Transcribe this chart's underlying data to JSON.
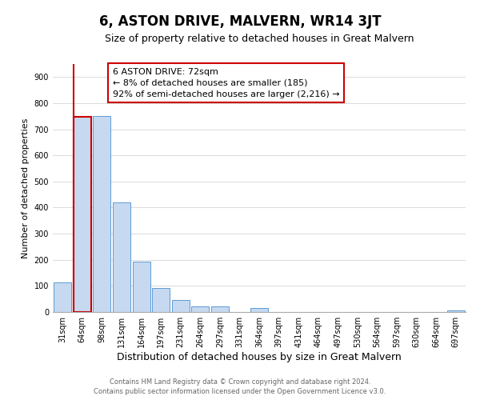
{
  "title": "6, ASTON DRIVE, MALVERN, WR14 3JT",
  "subtitle": "Size of property relative to detached houses in Great Malvern",
  "xlabel": "Distribution of detached houses by size in Great Malvern",
  "ylabel": "Number of detached properties",
  "bar_labels": [
    "31sqm",
    "64sqm",
    "98sqm",
    "131sqm",
    "164sqm",
    "197sqm",
    "231sqm",
    "264sqm",
    "297sqm",
    "331sqm",
    "364sqm",
    "397sqm",
    "431sqm",
    "464sqm",
    "497sqm",
    "530sqm",
    "564sqm",
    "597sqm",
    "630sqm",
    "664sqm",
    "697sqm"
  ],
  "bar_values": [
    113,
    748,
    752,
    420,
    193,
    93,
    46,
    22,
    20,
    0,
    15,
    0,
    0,
    0,
    0,
    0,
    0,
    0,
    0,
    0,
    5
  ],
  "bar_color": "#c6d9f0",
  "bar_edge_color": "#5b9bd5",
  "highlight_bar_index": 1,
  "highlight_color": "#cc0000",
  "ylim": [
    0,
    950
  ],
  "yticks": [
    0,
    100,
    200,
    300,
    400,
    500,
    600,
    700,
    800,
    900
  ],
  "annotation_title": "6 ASTON DRIVE: 72sqm",
  "annotation_line1": "← 8% of detached houses are smaller (185)",
  "annotation_line2": "92% of semi-detached houses are larger (2,216) →",
  "footer1": "Contains HM Land Registry data © Crown copyright and database right 2024.",
  "footer2": "Contains public sector information licensed under the Open Government Licence v3.0.",
  "title_fontsize": 12,
  "subtitle_fontsize": 9,
  "xlabel_fontsize": 9,
  "ylabel_fontsize": 8,
  "tick_fontsize": 7,
  "annotation_fontsize": 8,
  "footer_fontsize": 6
}
